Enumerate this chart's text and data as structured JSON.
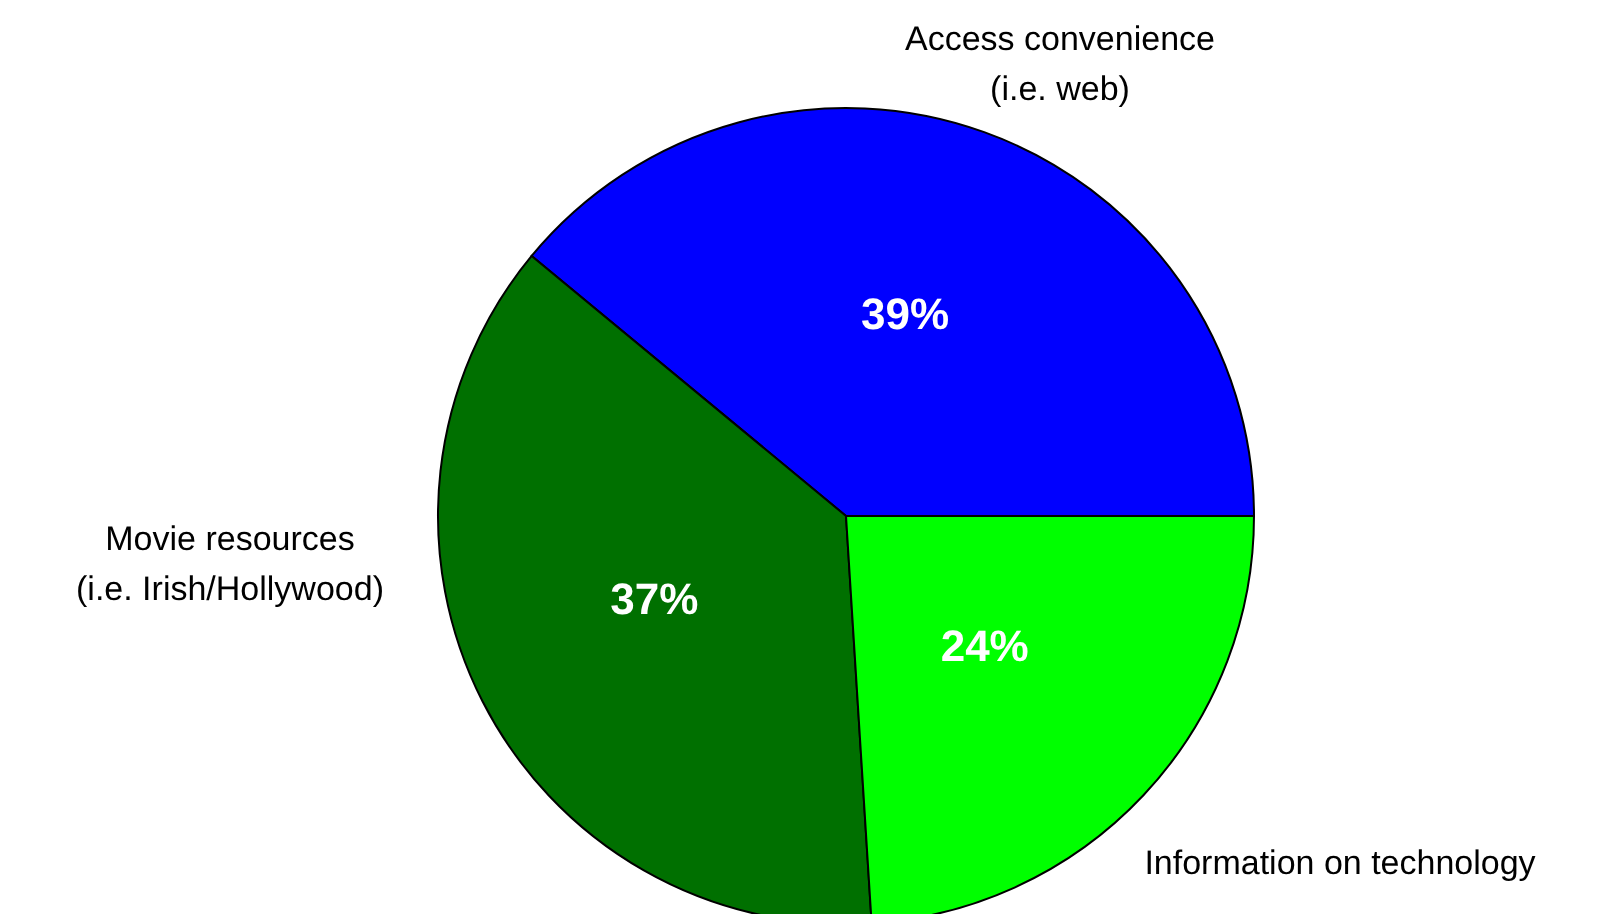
{
  "chart_data": {
    "type": "pie",
    "categories": [
      "Access convenience\n(i.e. web)",
      "Movie resources\n(i.e. Irish/Hollywood)",
      "Information on technology"
    ],
    "values": [
      39,
      37,
      24
    ],
    "colors": [
      "#0000ff",
      "#007000",
      "#00ff00"
    ],
    "value_labels": [
      "39%",
      "37%",
      "24%"
    ],
    "legend": false
  }
}
